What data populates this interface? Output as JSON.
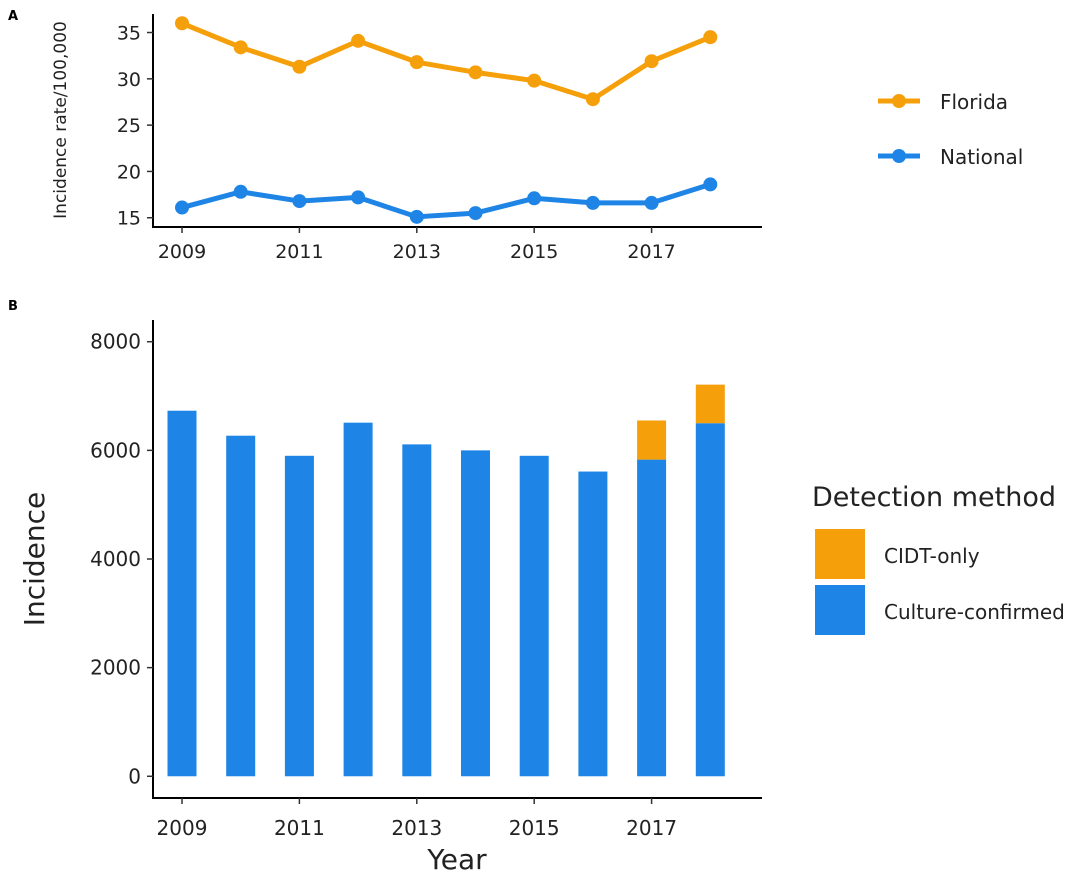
{
  "colors": {
    "florida": "#F5A00A",
    "national": "#1E85E6",
    "cidt": "#F5A00A",
    "culture": "#1E85E6"
  },
  "chart_data": [
    {
      "panel": "A",
      "type": "line",
      "title": "",
      "xlabel": "",
      "ylabel": "Incidence rate/100,000",
      "x": [
        2009,
        2010,
        2011,
        2012,
        2013,
        2014,
        2015,
        2016,
        2017,
        2018
      ],
      "xticks": [
        "2009",
        "2011",
        "2013",
        "2015",
        "2017"
      ],
      "yticks": [
        "15",
        "20",
        "25",
        "30",
        "35"
      ],
      "ylim": [
        14,
        37
      ],
      "legend_position": "right",
      "series": [
        {
          "name": "Florida",
          "values": [
            36.0,
            33.4,
            31.3,
            34.1,
            31.8,
            30.7,
            29.8,
            27.8,
            31.9,
            34.5
          ]
        },
        {
          "name": "National",
          "values": [
            16.1,
            17.8,
            16.8,
            17.2,
            15.1,
            15.5,
            17.1,
            16.6,
            16.6,
            18.6
          ]
        }
      ]
    },
    {
      "panel": "B",
      "type": "bar",
      "stacked": true,
      "title": "",
      "xlabel": "Year",
      "ylabel": "Incidence",
      "categories": [
        2009,
        2010,
        2011,
        2012,
        2013,
        2014,
        2015,
        2016,
        2017,
        2018
      ],
      "xticks": [
        "2009",
        "2011",
        "2013",
        "2015",
        "2017"
      ],
      "yticks": [
        "0",
        "2000",
        "4000",
        "6000",
        "8000"
      ],
      "ylim": [
        -400,
        8400
      ],
      "legend_title": "Detection method",
      "legend_position": "right",
      "series": [
        {
          "name": "Culture-confirmed",
          "values": [
            6730,
            6270,
            5900,
            6510,
            6110,
            6000,
            5900,
            5610,
            5830,
            6500
          ]
        },
        {
          "name": "CIDT-only",
          "values": [
            0,
            0,
            0,
            0,
            0,
            0,
            0,
            0,
            720,
            710
          ]
        }
      ]
    }
  ]
}
